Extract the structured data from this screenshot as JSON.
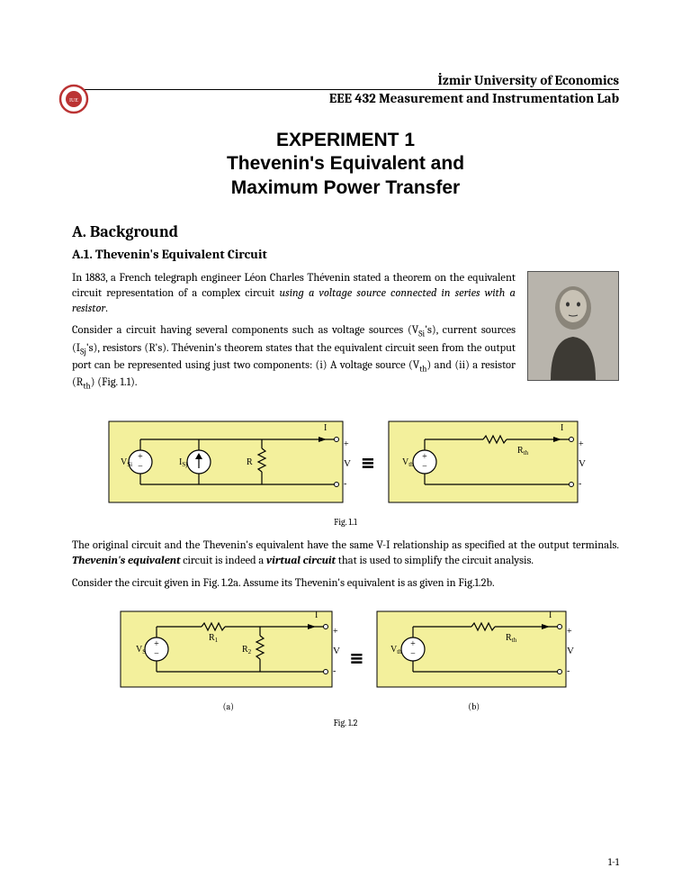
{
  "header": {
    "university": "İzmir University of Economics",
    "course": "EEE 432 Measurement and Instrumentation Lab"
  },
  "title": {
    "line1": "EXPERIMENT 1",
    "line2": "Thevenin's Equivalent and",
    "line3": "Maximum Power Transfer"
  },
  "sectionA": {
    "heading": "A.   Background",
    "sub1_heading": "A.1. Thevenin's Equivalent Circuit",
    "para1": "In 1883, a French telegraph engineer Léon Charles Thévenin stated a theorem on the equivalent circuit representation of a complex circuit using a voltage source connected in series with a resistor.",
    "para2_a": "Consider a circuit having several components such as voltage sources (V",
    "para2_b": "'s), current sources (I",
    "para2_c": "'s), resistors (R's). Thévenin's theorem states that the equivalent circuit seen from the output  port can be represented using just two components: (i) A voltage source (V",
    "para2_d": ") and (ii) a resistor (R",
    "para2_e": ") (Fig. 1.1).",
    "para3_a": "The original circuit and the Thevenin's equivalent have the same V-I relationship as specified at the output terminals. ",
    "para3_b": "Thevenin's equivalent",
    "para3_c": " circuit is indeed a ",
    "para3_d": "virtual circuit",
    "para3_e": " that is used to simplify the circuit analysis.",
    "para4": "Consider the circuit given in Fig. 1.2a. Assume its Thevenin's equivalent is as given in Fig.1.2b."
  },
  "figures": {
    "fig11_caption": "Fig. 1.1",
    "fig12_caption": "Fig. 1.2",
    "fig12a_sub": "(a)",
    "fig12b_sub": "(b)",
    "labels": {
      "VSi": "VSi",
      "ISj": "ISj",
      "R": "R",
      "I": "I",
      "V": "V",
      "Rth": "Rth",
      "Vth": "Vth",
      "VS": "VS",
      "R1": "R1",
      "R2": "R2",
      "plus": "+",
      "minus": "-"
    },
    "colors": {
      "box_fill": "#f3f09c",
      "box_stroke": "#000000",
      "wire": "#000000"
    }
  },
  "page_number": "1-1"
}
